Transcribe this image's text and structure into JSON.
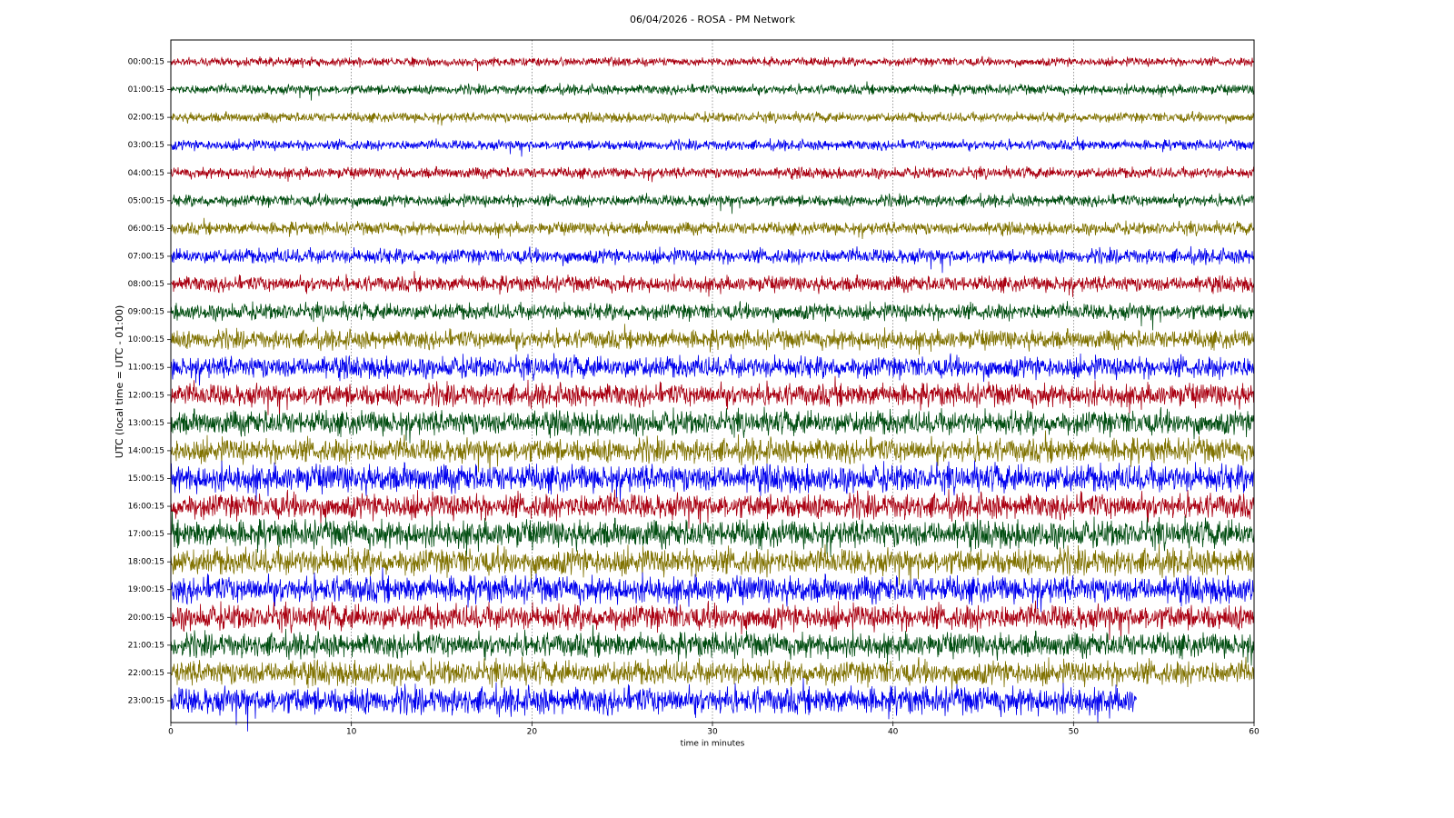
{
  "chart_data": {
    "type": "helicorder",
    "title": "06/04/2026 - ROSA - PM Network",
    "xlabel": "time in minutes",
    "ylabel": "UTC (local time = UTC - 01:00)",
    "xlim": [
      0,
      60
    ],
    "xticks": [
      0,
      10,
      20,
      30,
      40,
      50,
      60
    ],
    "grid": true,
    "series": [
      {
        "name": "00:00:15",
        "color": "#aa0011",
        "start": 0,
        "end": 60,
        "amplitude": 0.22
      },
      {
        "name": "01:00:15",
        "color": "#004d10",
        "start": 0,
        "end": 60,
        "amplitude": 0.25
      },
      {
        "name": "02:00:15",
        "color": "#807200",
        "start": 0,
        "end": 60,
        "amplitude": 0.25
      },
      {
        "name": "03:00:15",
        "color": "#0000ee",
        "start": 0,
        "end": 60,
        "amplitude": 0.26
      },
      {
        "name": "04:00:15",
        "color": "#aa0011",
        "start": 0,
        "end": 60,
        "amplitude": 0.28
      },
      {
        "name": "05:00:15",
        "color": "#004d10",
        "start": 0,
        "end": 60,
        "amplitude": 0.3
      },
      {
        "name": "06:00:15",
        "color": "#807200",
        "start": 0,
        "end": 60,
        "amplitude": 0.32
      },
      {
        "name": "07:00:15",
        "color": "#0000ee",
        "start": 0,
        "end": 60,
        "amplitude": 0.38
      },
      {
        "name": "08:00:15",
        "color": "#aa0011",
        "start": 0,
        "end": 60,
        "amplitude": 0.4
      },
      {
        "name": "09:00:15",
        "color": "#004d10",
        "start": 0,
        "end": 60,
        "amplitude": 0.42
      },
      {
        "name": "10:00:15",
        "color": "#807200",
        "start": 0,
        "end": 60,
        "amplitude": 0.48
      },
      {
        "name": "11:00:15",
        "color": "#0000ee",
        "start": 0,
        "end": 60,
        "amplitude": 0.55
      },
      {
        "name": "12:00:15",
        "color": "#aa0011",
        "start": 0,
        "end": 60,
        "amplitude": 0.58
      },
      {
        "name": "13:00:15",
        "color": "#004d10",
        "start": 0,
        "end": 60,
        "amplitude": 0.62
      },
      {
        "name": "14:00:15",
        "color": "#807200",
        "start": 0,
        "end": 60,
        "amplitude": 0.62
      },
      {
        "name": "15:00:15",
        "color": "#0000ee",
        "start": 0,
        "end": 60,
        "amplitude": 0.7
      },
      {
        "name": "16:00:15",
        "color": "#aa0011",
        "start": 0,
        "end": 60,
        "amplitude": 0.65
      },
      {
        "name": "17:00:15",
        "color": "#004d10",
        "start": 0,
        "end": 60,
        "amplitude": 0.7
      },
      {
        "name": "18:00:15",
        "color": "#807200",
        "start": 0,
        "end": 60,
        "amplitude": 0.68
      },
      {
        "name": "19:00:15",
        "color": "#0000ee",
        "start": 0,
        "end": 60,
        "amplitude": 0.68
      },
      {
        "name": "20:00:15",
        "color": "#aa0011",
        "start": 0,
        "end": 60,
        "amplitude": 0.65
      },
      {
        "name": "21:00:15",
        "color": "#004d10",
        "start": 0,
        "end": 60,
        "amplitude": 0.62
      },
      {
        "name": "22:00:15",
        "color": "#807200",
        "start": 0,
        "end": 60,
        "amplitude": 0.62
      },
      {
        "name": "23:00:15",
        "color": "#0000ee",
        "start": 0,
        "end": 53.5,
        "amplitude": 0.7
      }
    ]
  }
}
